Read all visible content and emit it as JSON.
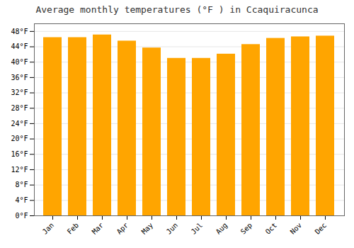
{
  "chart_data": {
    "type": "bar",
    "title": "Average monthly temperatures (°F ) in Ccaquiracunca",
    "categories": [
      "Jan",
      "Feb",
      "Mar",
      "Apr",
      "May",
      "Jun",
      "Jul",
      "Aug",
      "Sep",
      "Oct",
      "Nov",
      "Dec"
    ],
    "values": [
      46.4,
      46.4,
      47.1,
      45.5,
      43.7,
      41.0,
      41.0,
      42.1,
      44.6,
      46.2,
      46.6,
      46.8
    ],
    "color": "#FFA500",
    "ylim": [
      0,
      50
    ],
    "yticks": [
      {
        "value": 0,
        "label": "0°F"
      },
      {
        "value": 4,
        "label": "4°F"
      },
      {
        "value": 8,
        "label": "8°F"
      },
      {
        "value": 12,
        "label": "12°F"
      },
      {
        "value": 16,
        "label": "16°F"
      },
      {
        "value": 20,
        "label": "20°F"
      },
      {
        "value": 24,
        "label": "24°F"
      },
      {
        "value": 28,
        "label": "28°F"
      },
      {
        "value": 32,
        "label": "32°F"
      },
      {
        "value": 36,
        "label": "36°F"
      },
      {
        "value": 40,
        "label": "40°F"
      },
      {
        "value": 44,
        "label": "44°F"
      },
      {
        "value": 48,
        "label": "48°F"
      }
    ],
    "grid": true
  }
}
